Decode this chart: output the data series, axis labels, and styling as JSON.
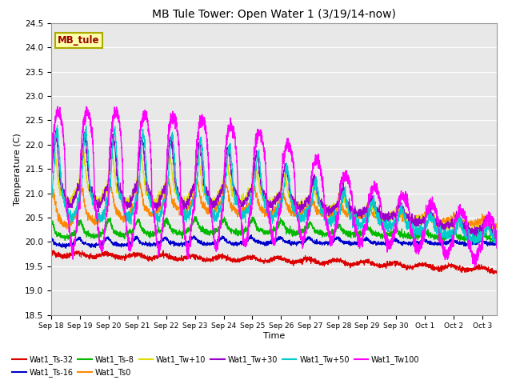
{
  "title": "MB Tule Tower: Open Water 1 (3/19/14-now)",
  "xlabel": "Time",
  "ylabel": "Temperature (C)",
  "ylim": [
    18.5,
    24.5
  ],
  "bg_color": "#e8e8e8",
  "grid_color": "#ffffff",
  "series": {
    "Wat1_Ts-32": {
      "color": "#dd0000",
      "lw": 0.8
    },
    "Wat1_Ts-16": {
      "color": "#0000cc",
      "lw": 0.8
    },
    "Wat1_Ts-8": {
      "color": "#00bb00",
      "lw": 0.8
    },
    "Wat1_Ts0": {
      "color": "#ff8800",
      "lw": 0.8
    },
    "Wat1_Tw+10": {
      "color": "#dddd00",
      "lw": 0.8
    },
    "Wat1_Tw+30": {
      "color": "#9900cc",
      "lw": 0.8
    },
    "Wat1_Tw+50": {
      "color": "#00cccc",
      "lw": 0.8
    },
    "Wat1_Tw100": {
      "color": "#ff00ff",
      "lw": 1.0
    }
  },
  "legend_label": "MB_tule",
  "legend_box_color": "#ffffaa",
  "legend_text_color": "#990000",
  "x_tick_labels": [
    "Sep 18",
    "Sep 19",
    "Sep 20",
    "Sep 21",
    "Sep 22",
    "Sep 23",
    "Sep 24",
    "Sep 25",
    "Sep 26",
    "Sep 27",
    "Sep 28",
    "Sep 29",
    "Sep 30",
    "Oct 1",
    "Oct 2",
    "Oct 3"
  ],
  "yticks": [
    18.5,
    19.0,
    19.5,
    20.0,
    20.5,
    21.0,
    21.5,
    22.0,
    22.5,
    23.0,
    23.5,
    24.0,
    24.5
  ]
}
